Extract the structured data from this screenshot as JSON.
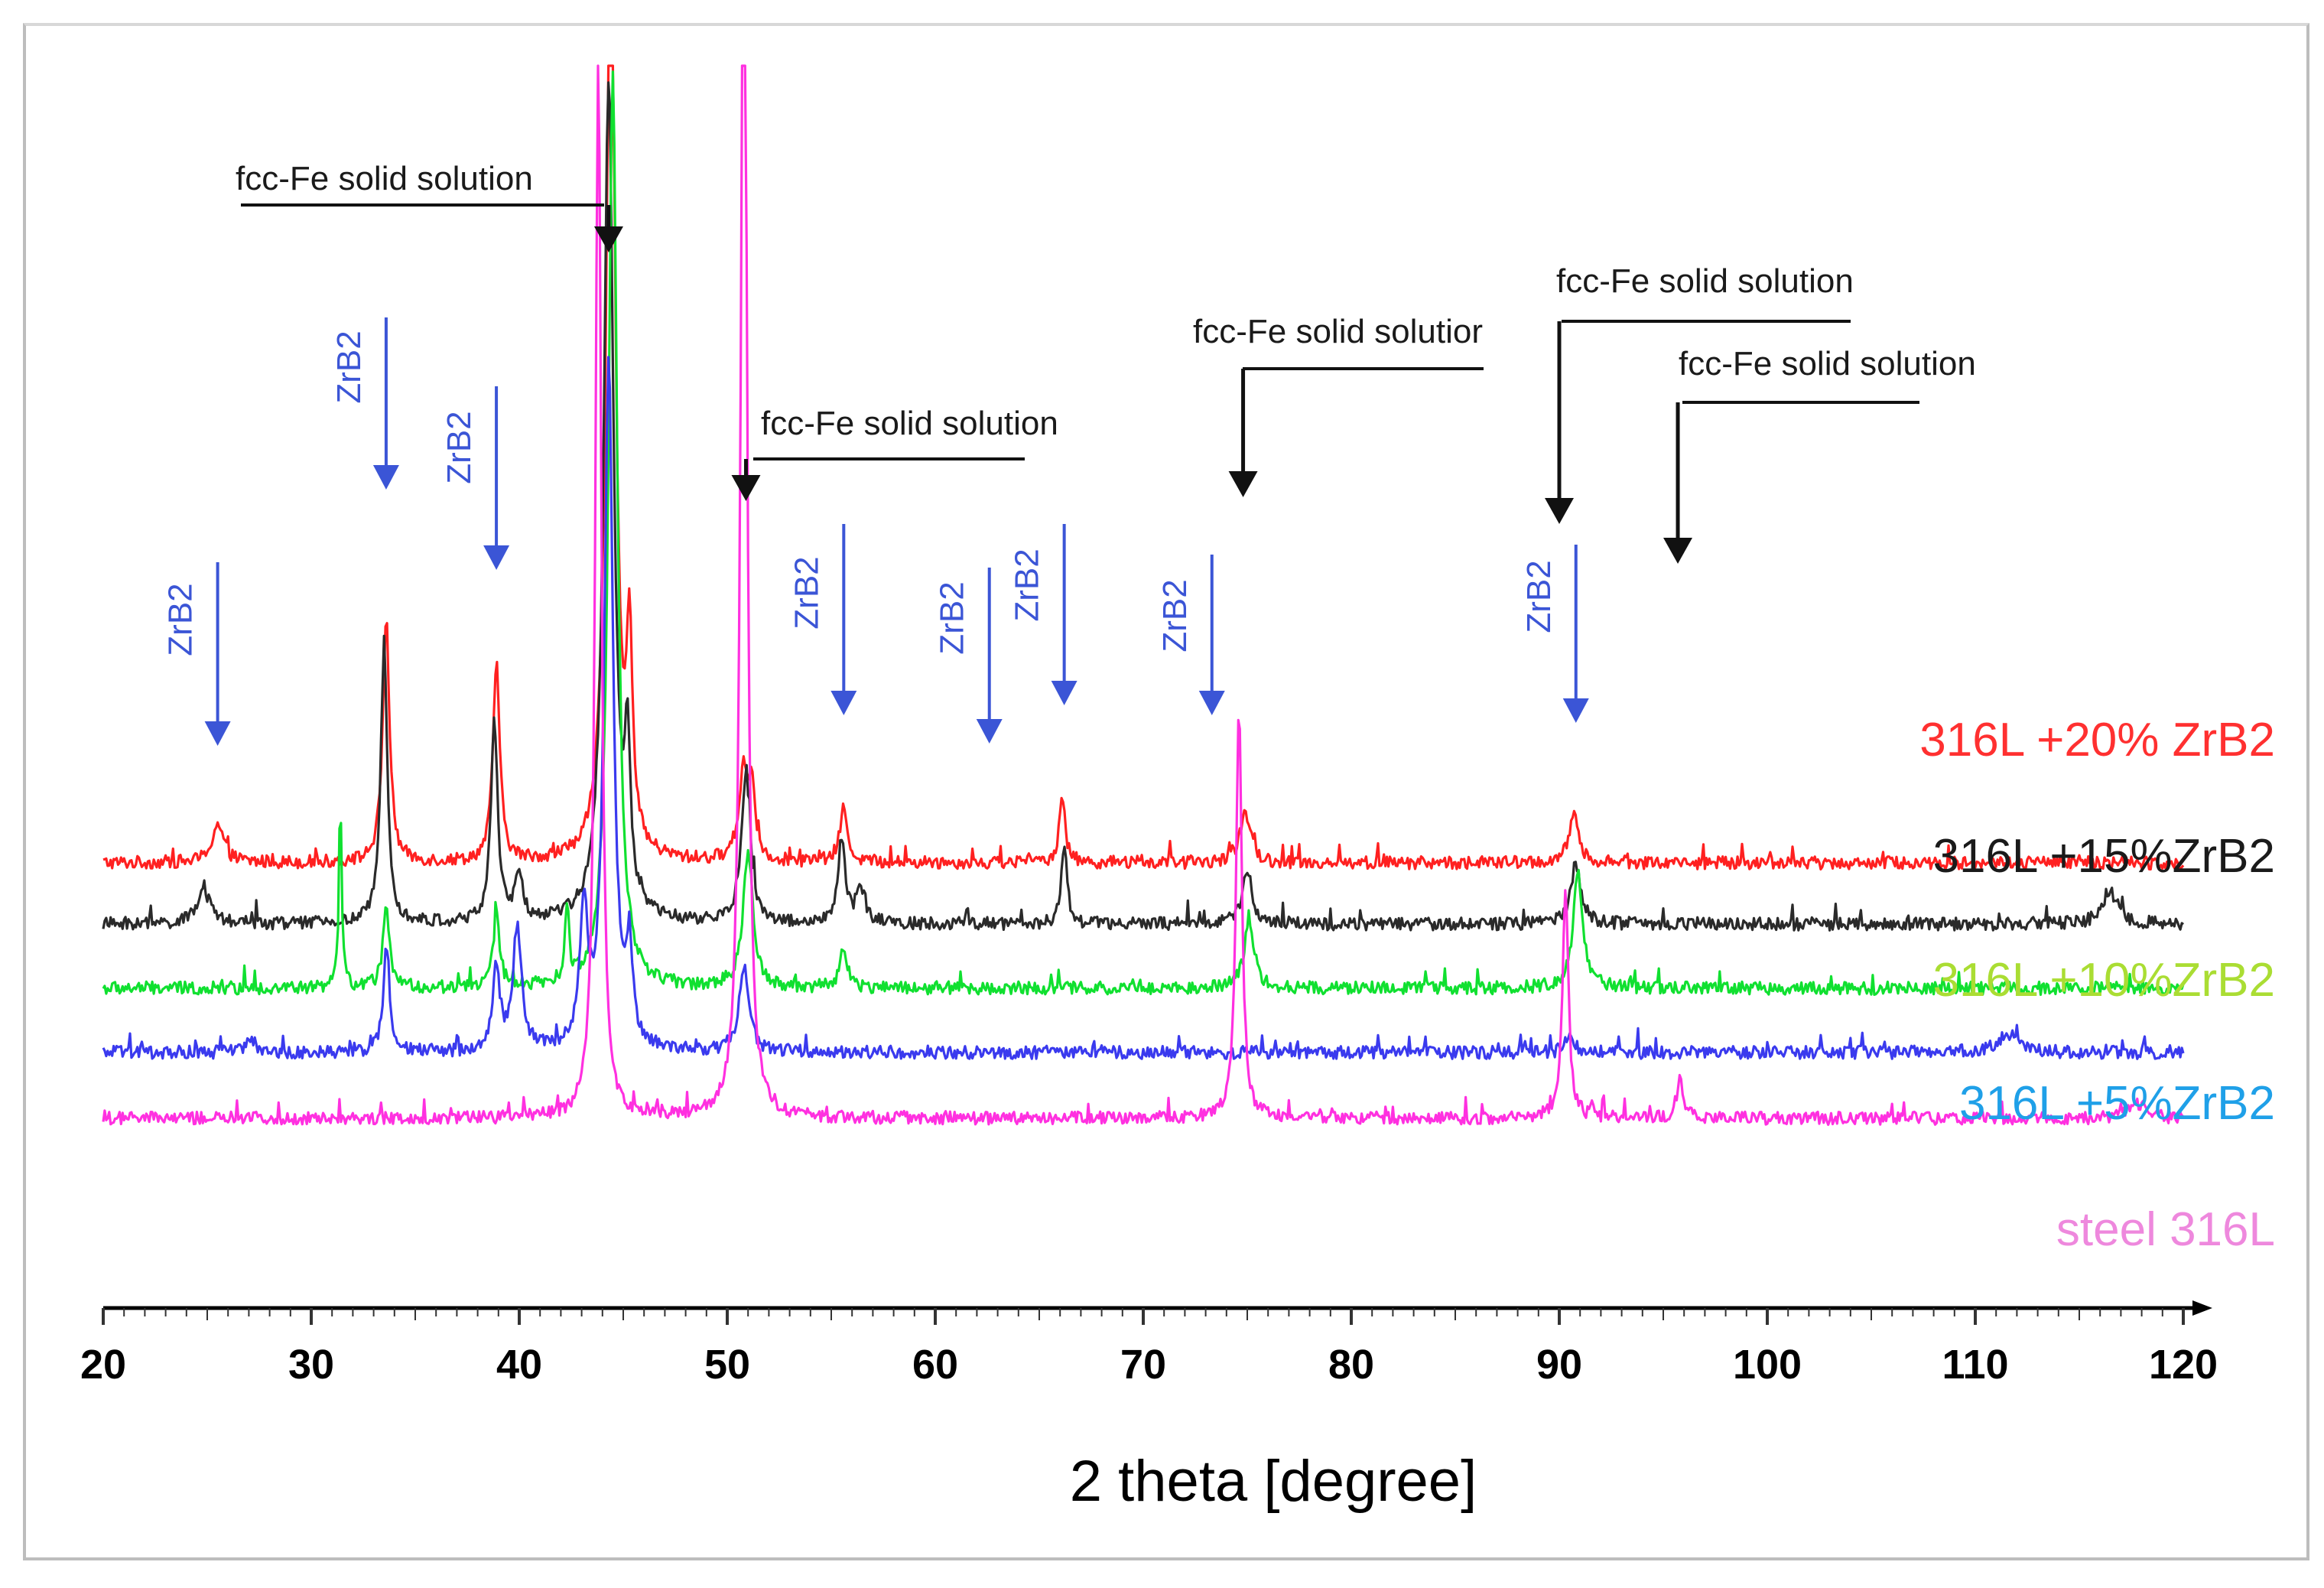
{
  "chart_data": {
    "type": "line",
    "title": "",
    "xlabel": "2 theta  [degree]",
    "ylabel": "",
    "xlim": [
      20,
      120
    ],
    "x_ticks": [
      20,
      30,
      40,
      50,
      60,
      70,
      80,
      90,
      100,
      110,
      120
    ],
    "grid": false,
    "series": [
      {
        "name": "316L +20% ZrB2",
        "color": "#ff2020",
        "label_color": "#ff3030",
        "baseline": 0.4,
        "peaks": [
          [
            25.5,
            0.25,
            0.6
          ],
          [
            33.6,
            1.6,
            0.35
          ],
          [
            38.9,
            1.3,
            0.35
          ],
          [
            44.4,
            6.5,
            0.45
          ],
          [
            45.3,
            1.3,
            0.3
          ],
          [
            50.8,
            0.6,
            0.5
          ],
          [
            51.2,
            0.4,
            0.3
          ],
          [
            55.6,
            0.35,
            0.4
          ],
          [
            66.1,
            0.45,
            0.3
          ],
          [
            74.9,
            0.35,
            0.5
          ],
          [
            90.7,
            0.3,
            0.5
          ]
        ]
      },
      {
        "name": "316L +15%ZrB2",
        "color": "#2a2a2a",
        "label_color": "#1a1a1a",
        "baseline": 0.0,
        "peaks": [
          [
            24.8,
            0.25,
            0.6
          ],
          [
            33.5,
            1.8,
            0.35
          ],
          [
            38.8,
            1.3,
            0.35
          ],
          [
            40.0,
            0.3,
            0.4
          ],
          [
            44.3,
            5.5,
            0.5
          ],
          [
            45.2,
            1.0,
            0.3
          ],
          [
            50.9,
            1.0,
            0.45
          ],
          [
            55.5,
            0.55,
            0.35
          ],
          [
            56.4,
            0.25,
            0.4
          ],
          [
            66.2,
            0.5,
            0.3
          ],
          [
            75.0,
            0.35,
            0.5
          ],
          [
            90.8,
            0.4,
            0.5
          ],
          [
            116.5,
            0.2,
            0.8
          ]
        ]
      },
      {
        "name": "316L +10%ZrB2",
        "color": "#10e030",
        "label_color": "#aadd33",
        "baseline": -0.42,
        "peaks": [
          [
            31.4,
            1.2,
            0.15
          ],
          [
            33.6,
            0.5,
            0.35
          ],
          [
            38.9,
            0.45,
            0.35
          ],
          [
            42.3,
            0.5,
            0.2
          ],
          [
            44.5,
            6.0,
            0.45
          ],
          [
            51.0,
            0.9,
            0.5
          ],
          [
            55.6,
            0.25,
            0.4
          ],
          [
            75.1,
            0.45,
            0.5
          ],
          [
            90.9,
            0.75,
            0.5
          ]
        ]
      },
      {
        "name": "316L +5%ZrB2",
        "color": "#3a3aee",
        "label_color": "#1fa0e8",
        "baseline": -0.84,
        "peaks": [
          [
            27.0,
            0.12,
            0.3
          ],
          [
            33.6,
            0.7,
            0.3
          ],
          [
            38.9,
            0.55,
            0.35
          ],
          [
            39.9,
            0.8,
            0.45
          ],
          [
            43.1,
            0.9,
            0.4
          ],
          [
            44.3,
            4.5,
            0.45
          ],
          [
            45.3,
            0.6,
            0.3
          ],
          [
            50.8,
            0.55,
            0.5
          ],
          [
            90.5,
            0.12,
            0.4
          ],
          [
            111.5,
            0.12,
            1.0
          ]
        ]
      },
      {
        "name": "steel 316L",
        "color": "#ff30e0",
        "label_color": "#ee88dd",
        "baseline": -1.27,
        "peaks": [
          [
            43.8,
            7.0,
            0.3
          ],
          [
            50.8,
            9.0,
            0.3
          ],
          [
            74.6,
            2.7,
            0.3
          ],
          [
            90.3,
            1.5,
            0.3
          ],
          [
            95.8,
            0.25,
            0.35
          ],
          [
            117.8,
            0.1,
            0.8
          ]
        ]
      }
    ],
    "annotations": [
      {
        "text": "fcc-Fe solid solution",
        "target_x": 44.3,
        "color": "black"
      },
      {
        "text": "fcc-Fe solid solution",
        "target_x": 50.9,
        "color": "black"
      },
      {
        "text": "fcc-Fe solid solutior",
        "target_x": 74.8,
        "color": "black"
      },
      {
        "text": "fcc-Fe solid solution",
        "target_x": 90.0,
        "color": "black"
      },
      {
        "text": "fcc-Fe solid solution",
        "target_x": 95.7,
        "color": "black"
      },
      {
        "text": "ZrB2",
        "target_x": 25.5,
        "color": "blue"
      },
      {
        "text": "ZrB2",
        "target_x": 33.6,
        "color": "blue"
      },
      {
        "text": "ZrB2",
        "target_x": 38.9,
        "color": "blue"
      },
      {
        "text": "ZrB2",
        "target_x": 55.6,
        "color": "blue"
      },
      {
        "text": "ZrB2",
        "target_x": 62.6,
        "color": "blue"
      },
      {
        "text": "ZrB2",
        "target_x": 66.2,
        "color": "blue"
      },
      {
        "text": "ZrB2",
        "target_x": 73.3,
        "color": "blue"
      },
      {
        "text": "ZrB2",
        "target_x": 90.8,
        "color": "blue"
      }
    ]
  }
}
